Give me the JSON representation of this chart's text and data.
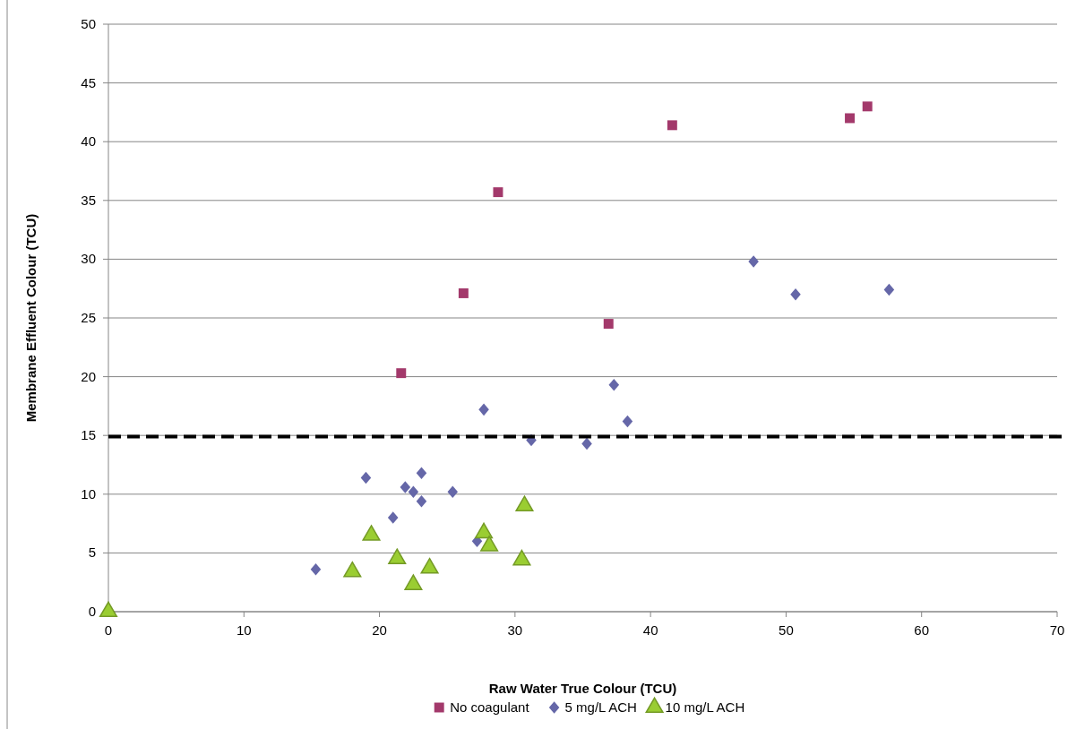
{
  "chart_data": {
    "type": "scatter",
    "xlabel": "Raw Water True Colour (TCU)",
    "ylabel": "Membrane Effluent Colour (TCU)",
    "xlim": [
      0,
      70
    ],
    "xticks": [
      0,
      10,
      20,
      30,
      40,
      50,
      60,
      70
    ],
    "ylim": [
      0,
      50
    ],
    "yticks": [
      0,
      5,
      10,
      15,
      20,
      25,
      30,
      35,
      40,
      45,
      50
    ],
    "grid": "y",
    "legend": "bottom",
    "series": [
      {
        "name": "No coagulant",
        "color": "#a3396b",
        "marker": "square",
        "x": [
          21.6,
          26.2,
          28.75,
          36.9,
          41.6,
          54.7,
          56.0
        ],
        "values": [
          20.3,
          27.1,
          35.7,
          24.5,
          41.4,
          42.0,
          43.0
        ]
      },
      {
        "name": "5 mg/L ACH",
        "color": "#6567a8",
        "marker": "diamond",
        "x": [
          15.3,
          19.0,
          21.0,
          21.9,
          22.5,
          23.1,
          23.1,
          25.4,
          27.2,
          27.7,
          31.2,
          35.3,
          37.3,
          38.3,
          47.6,
          50.7,
          57.6
        ],
        "values": [
          3.6,
          11.4,
          8.0,
          10.6,
          10.2,
          11.8,
          9.4,
          10.2,
          6.0,
          17.2,
          14.6,
          14.3,
          19.3,
          16.2,
          29.8,
          27.0,
          27.4
        ]
      },
      {
        "name": "10 mg/L ACH",
        "color": "#9acd32",
        "marker": "triangle",
        "x": [
          0,
          18.0,
          19.4,
          21.3,
          22.5,
          23.7,
          27.7,
          28.1,
          30.5,
          30.7
        ],
        "values": [
          0,
          3.4,
          6.5,
          4.5,
          2.3,
          3.7,
          6.7,
          5.6,
          4.4,
          9.0
        ]
      }
    ],
    "ref_lines": [
      {
        "axis": "y",
        "value": 14.9,
        "color": "#000000",
        "line_style": "dashed"
      }
    ]
  }
}
